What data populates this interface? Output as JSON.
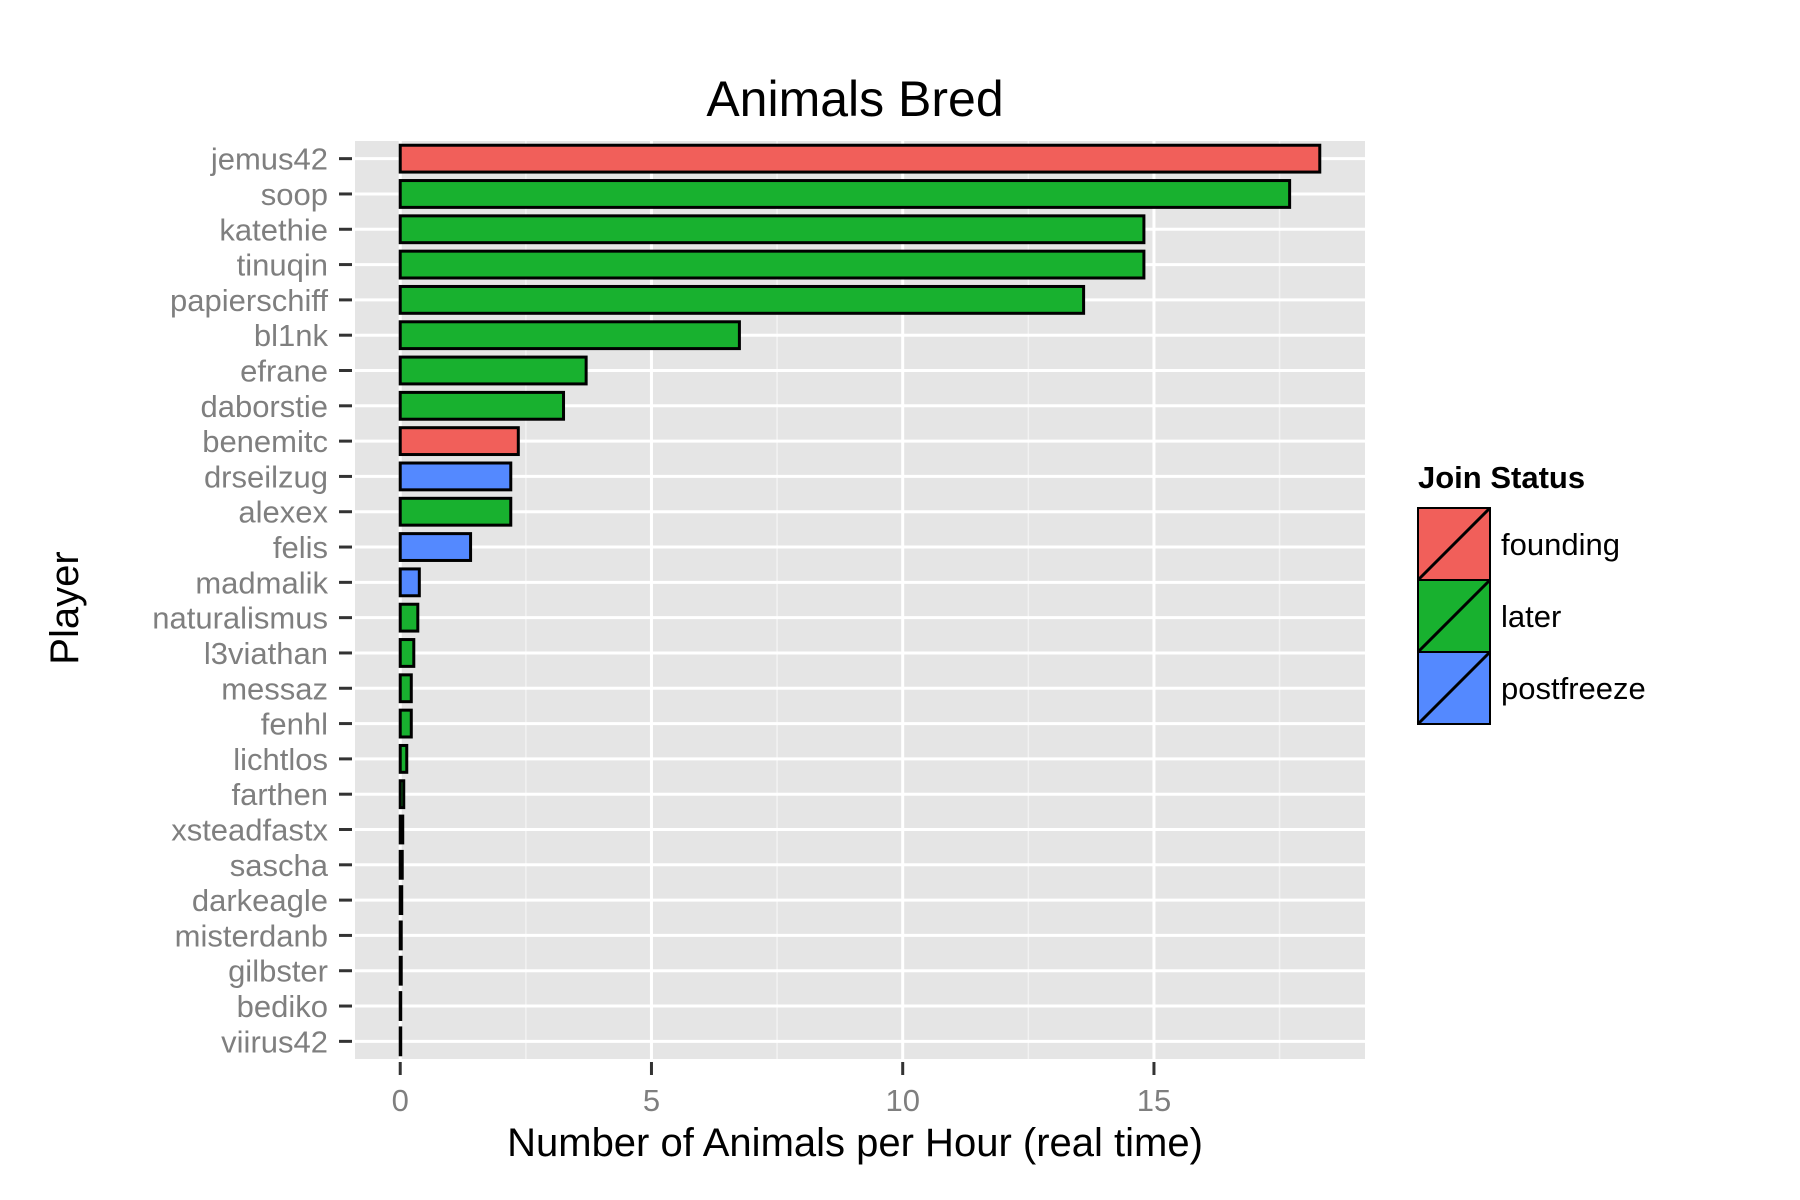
{
  "chart_data": {
    "type": "bar",
    "orientation": "horizontal",
    "title": "Animals Bred",
    "xlabel": "Number of Animals per Hour (real time)",
    "ylabel": "Player",
    "xlim": [
      -0.9,
      19.2
    ],
    "xticks": [
      0,
      5,
      10,
      15
    ],
    "grid": true,
    "legend_placement": "right",
    "legend_title": "Join Status",
    "legend": [
      {
        "name": "founding",
        "color": "#f15f5a"
      },
      {
        "name": "later",
        "color": "#18b12f"
      },
      {
        "name": "postfreeze",
        "color": "#5489ff"
      }
    ],
    "categories": [
      "jemus42",
      "soop",
      "katethie",
      "tinuqin",
      "papierschiff",
      "bl1nk",
      "efrane",
      "daborstie",
      "benemitc",
      "drseilzug",
      "alexex",
      "felis",
      "madmalik",
      "naturalismus",
      "l3viathan",
      "messaz",
      "fenhl",
      "lichtlos",
      "farthen",
      "xsteadfastx",
      "sascha",
      "darkeagle",
      "misterdanb",
      "gilbster",
      "bediko",
      "viirus42"
    ],
    "values": [
      18.3,
      17.7,
      14.8,
      14.8,
      13.6,
      6.75,
      3.7,
      3.25,
      2.35,
      2.2,
      2.2,
      1.4,
      0.38,
      0.35,
      0.27,
      0.22,
      0.22,
      0.13,
      0.07,
      0.05,
      0.04,
      0.03,
      0.02,
      0.02,
      0.01,
      0.01
    ],
    "status": [
      "founding",
      "later",
      "later",
      "later",
      "later",
      "later",
      "later",
      "later",
      "founding",
      "postfreeze",
      "later",
      "postfreeze",
      "postfreeze",
      "later",
      "later",
      "later",
      "later",
      "later",
      "later",
      "later",
      "later",
      "later",
      "later",
      "later",
      "later",
      "later"
    ]
  }
}
